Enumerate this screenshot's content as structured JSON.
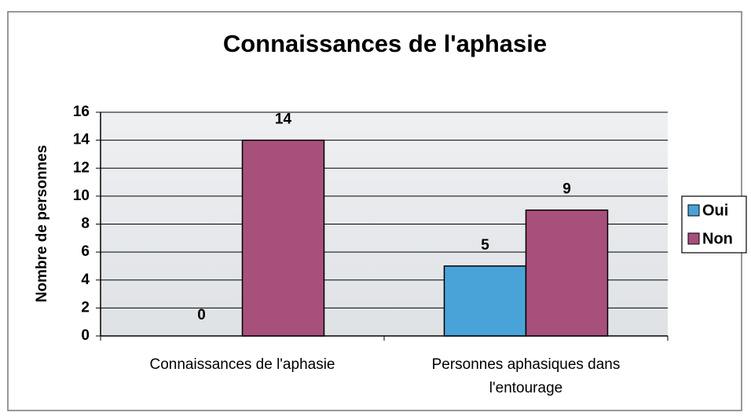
{
  "chart_data": {
    "type": "bar",
    "title": "Connaissances de l'aphasie",
    "y_label": "Nombre de personnes",
    "categories": [
      "Connaissances de l'aphasie",
      "Personnes aphasiques dans l'entourage"
    ],
    "series": [
      {
        "name": "Oui",
        "color": "#4aa3d8",
        "values": [
          0,
          5
        ]
      },
      {
        "name": "Non",
        "color": "#a8507c",
        "values": [
          14,
          9
        ]
      }
    ],
    "ylim": [
      0,
      16
    ],
    "yticks": [
      0,
      2,
      4,
      6,
      8,
      10,
      12,
      14,
      16
    ],
    "grid": true,
    "legend": "right"
  }
}
